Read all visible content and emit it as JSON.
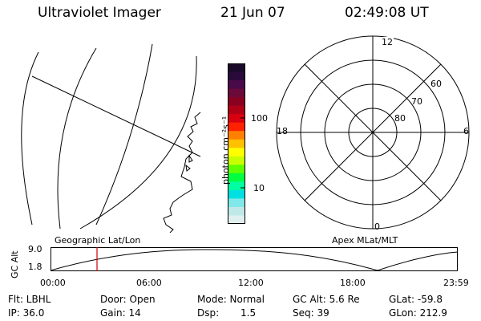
{
  "header": {
    "title": "Ultraviolet Imager",
    "date": "21 Jun 07",
    "time": "02:49:08 UT"
  },
  "colorbar": {
    "unit_label": "photon cm⁻²s⁻¹",
    "ticks": [
      "100",
      "10"
    ],
    "colors": [
      "#1a0a2a",
      "#2a0a3a",
      "#4a0a4a",
      "#6a0a3a",
      "#8a0020",
      "#b00018",
      "#d80010",
      "#ff2000",
      "#ff8000",
      "#ffc000",
      "#ffff00",
      "#c8ff00",
      "#60ff00",
      "#00ff40",
      "#00ffa0",
      "#00e0e0",
      "#80e8e8",
      "#c0e8e8",
      "#e0f0f0"
    ]
  },
  "polar": {
    "mlt_labels": [
      "12",
      "18",
      "6",
      "0"
    ],
    "lat_labels": [
      "60",
      "70",
      "80"
    ]
  },
  "timeline": {
    "y_axis": "GC Alt",
    "y_ticks": [
      "9.0",
      "1.8"
    ],
    "left_label": "Geographic Lat/Lon",
    "right_label": "Apex MLat/MLT",
    "x_ticks": [
      "00:00",
      "06:00",
      "12:00",
      "18:00",
      "23:59"
    ]
  },
  "info": {
    "flt": "Flt: LBHL",
    "ip": "IP: 36.0",
    "door": "Door: Open",
    "gain": "Gain: 14",
    "mode": "Mode: Normal",
    "dsp_label": "Dsp:",
    "dsp_value": "1.5",
    "gc_alt": "GC Alt: 5.6 Re",
    "seq": "Seq: 39",
    "glat": "GLat: -59.8",
    "glon": "GLon: 212.9"
  }
}
